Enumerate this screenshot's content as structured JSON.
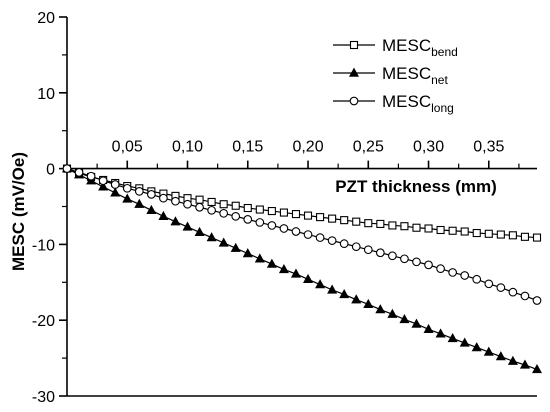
{
  "chart_data": {
    "type": "line",
    "xlabel": "PZT thickness (mm)",
    "ylabel": "MESC (mV/Oe)",
    "xlim": [
      0,
      0.39
    ],
    "ylim": [
      -30,
      20
    ],
    "x_ticks": [
      0.05,
      0.1,
      0.15,
      0.2,
      0.25,
      0.3,
      0.35
    ],
    "x_tick_labels": [
      "0,05",
      "0,10",
      "0,15",
      "0,20",
      "0,25",
      "0,30",
      "0,35"
    ],
    "y_ticks": [
      -30,
      -20,
      -10,
      0,
      10,
      20
    ],
    "y_tick_labels": [
      "-30",
      "-20",
      "-10",
      "0",
      "10",
      "20"
    ],
    "x_axis_position": "at y = 0, tick labels above",
    "legend_position": "top-right",
    "grid": false,
    "x": [
      0.0,
      0.01,
      0.02,
      0.03,
      0.04,
      0.05,
      0.06,
      0.07,
      0.08,
      0.09,
      0.1,
      0.11,
      0.12,
      0.13,
      0.14,
      0.15,
      0.16,
      0.17,
      0.18,
      0.19,
      0.2,
      0.21,
      0.22,
      0.23,
      0.24,
      0.25,
      0.26,
      0.27,
      0.28,
      0.29,
      0.3,
      0.31,
      0.32,
      0.33,
      0.34,
      0.35,
      0.36,
      0.37,
      0.38,
      0.39
    ],
    "series": [
      {
        "name_main": "MESC",
        "name_sub": "bend",
        "marker": "square-open",
        "values": [
          0.0,
          -0.6,
          -1.1,
          -1.5,
          -1.9,
          -2.3,
          -2.6,
          -3.0,
          -3.3,
          -3.6,
          -3.9,
          -4.1,
          -4.4,
          -4.7,
          -4.9,
          -5.2,
          -5.4,
          -5.6,
          -5.8,
          -6.0,
          -6.2,
          -6.4,
          -6.6,
          -6.8,
          -7.0,
          -7.2,
          -7.3,
          -7.5,
          -7.6,
          -7.8,
          -7.9,
          -8.1,
          -8.2,
          -8.3,
          -8.5,
          -8.6,
          -8.7,
          -8.8,
          -9.0,
          -9.1
        ]
      },
      {
        "name_main": "MESC",
        "name_sub": "net",
        "marker": "triangle-filled",
        "values": [
          0.0,
          -0.8,
          -1.6,
          -2.4,
          -3.2,
          -4.0,
          -4.7,
          -5.5,
          -6.3,
          -7.0,
          -7.7,
          -8.4,
          -9.1,
          -9.8,
          -10.5,
          -11.2,
          -11.9,
          -12.6,
          -13.3,
          -13.9,
          -14.6,
          -15.3,
          -16.0,
          -16.6,
          -17.3,
          -17.9,
          -18.6,
          -19.2,
          -19.9,
          -20.5,
          -21.2,
          -21.8,
          -22.4,
          -23.0,
          -23.6,
          -24.2,
          -24.8,
          -25.4,
          -25.9,
          -26.5
        ]
      },
      {
        "name_main": "MESC",
        "name_sub": "long",
        "marker": "circle-open",
        "values": [
          0.0,
          -0.5,
          -1.0,
          -1.6,
          -2.1,
          -2.6,
          -3.0,
          -3.4,
          -3.9,
          -4.3,
          -4.7,
          -5.1,
          -5.5,
          -5.9,
          -6.3,
          -6.7,
          -7.1,
          -7.5,
          -7.9,
          -8.3,
          -8.7,
          -9.1,
          -9.5,
          -9.9,
          -10.3,
          -10.7,
          -11.1,
          -11.5,
          -11.9,
          -12.3,
          -12.7,
          -13.2,
          -13.7,
          -14.1,
          -14.6,
          -15.2,
          -15.7,
          -16.3,
          -16.8,
          -17.4
        ]
      }
    ]
  }
}
